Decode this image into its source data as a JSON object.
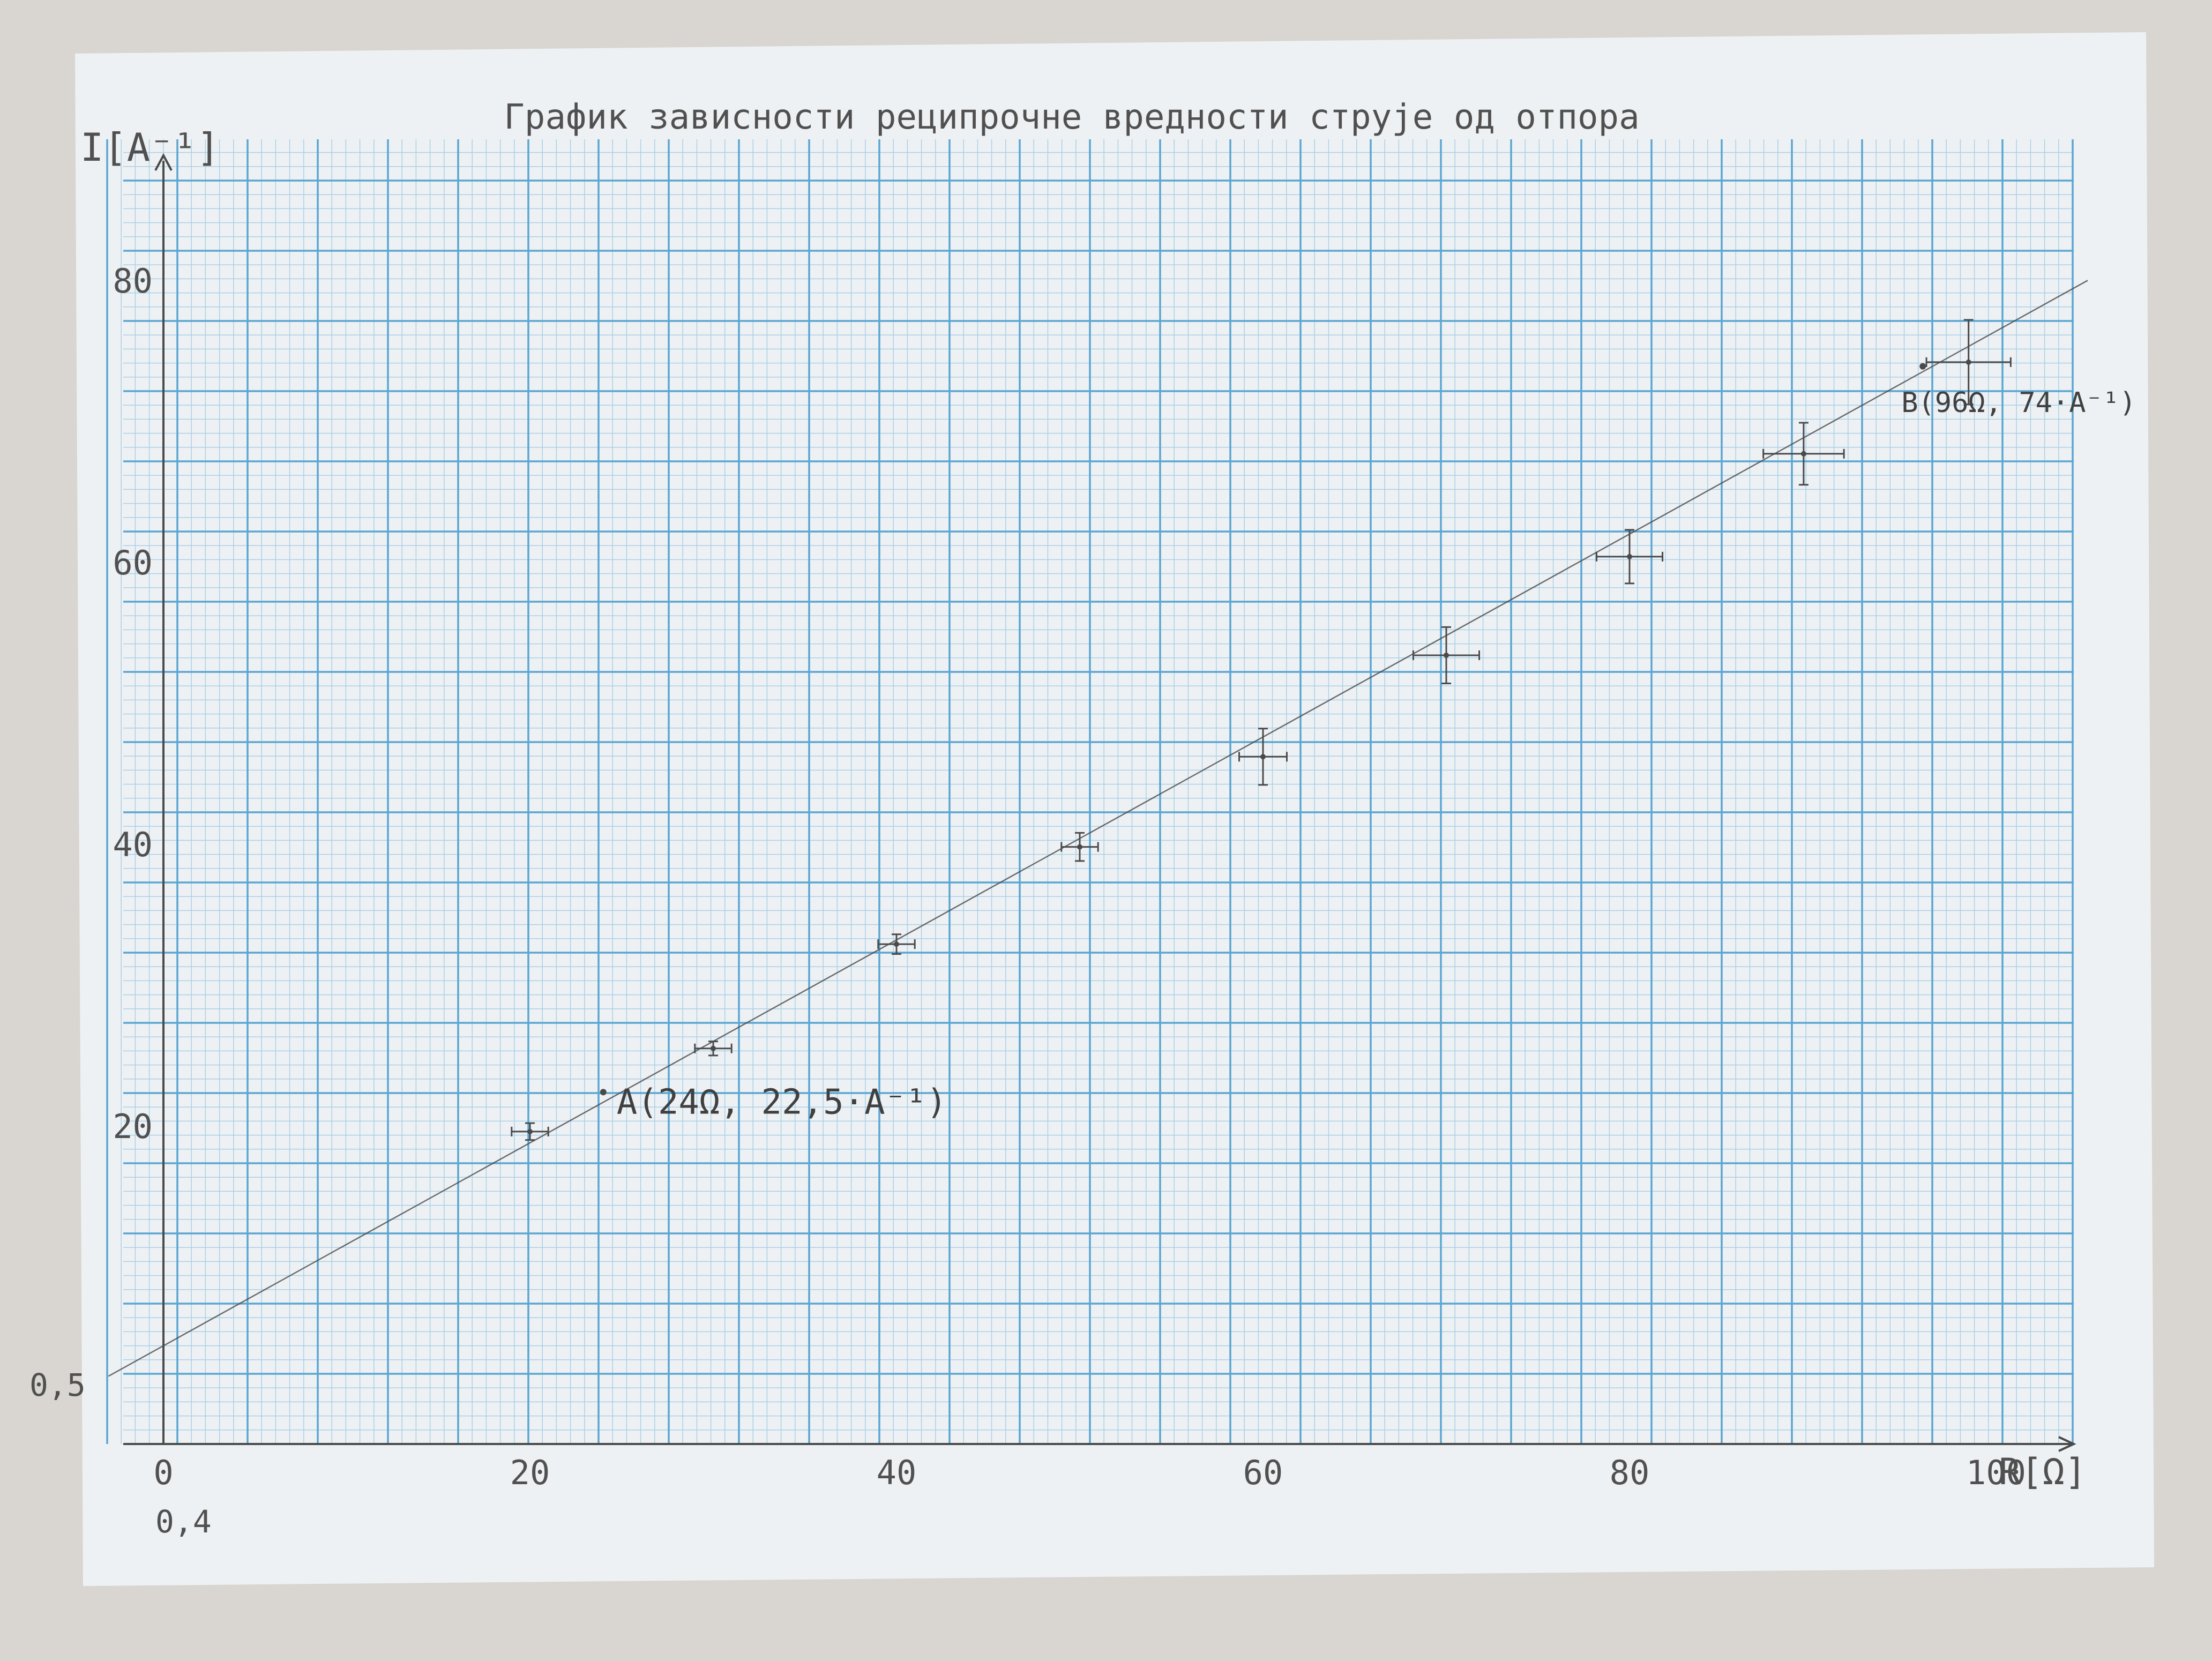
{
  "chart_data": {
    "type": "scatter",
    "title": "График зависности реципрочне вредности струје од отпора",
    "xlabel": "R[Ω]",
    "ylabel": "I[A⁻¹]",
    "xlim": [
      0,
      106
    ],
    "ylim": [
      -1.5,
      90
    ],
    "grid": true,
    "x_tick_labels": [
      "0",
      "20",
      "40",
      "60",
      "80",
      "100"
    ],
    "x_ticks": [
      0,
      20,
      40,
      60,
      80,
      100
    ],
    "y_tick_labels": [
      "20",
      "40",
      "60",
      "80"
    ],
    "y_ticks": [
      20,
      40,
      60,
      80
    ],
    "corner_labels": {
      "y_origin": "0,5",
      "x_origin": "0,4"
    },
    "points": [
      {
        "x": 20,
        "y": 19.7,
        "xerr": 1.0,
        "yerr": 0.6
      },
      {
        "x": 30,
        "y": 25.6,
        "xerr": 1.0,
        "yerr": 0.5
      },
      {
        "x": 40,
        "y": 33.0,
        "xerr": 1.0,
        "yerr": 0.7
      },
      {
        "x": 50,
        "y": 39.9,
        "xerr": 1.0,
        "yerr": 1.0
      },
      {
        "x": 60,
        "y": 46.3,
        "xerr": 1.3,
        "yerr": 2.0
      },
      {
        "x": 70,
        "y": 53.5,
        "xerr": 1.8,
        "yerr": 2.0
      },
      {
        "x": 80,
        "y": 60.5,
        "xerr": 1.8,
        "yerr": 1.9
      },
      {
        "x": 89.5,
        "y": 67.8,
        "xerr": 2.2,
        "yerr": 2.2
      },
      {
        "x": 98.5,
        "y": 74.3,
        "xerr": 2.3,
        "yerr": 3.0
      }
    ],
    "fit_line": {
      "x": [
        0,
        100
      ],
      "y": [
        4.5,
        76.5
      ]
    },
    "annotations": [
      {
        "label": "A(24Ω, 22,5·A⁻¹)",
        "x": 24,
        "y": 22.5
      },
      {
        "label": "B(96Ω, 74·A⁻¹)",
        "x": 96,
        "y": 74
      }
    ]
  },
  "colors": {
    "paper": "#eef1f4",
    "grid_major": "#5aa6d2",
    "grid_minor": "#a9d0e6",
    "pencil": "#4a4a4a",
    "background": "#d9d6d1"
  }
}
